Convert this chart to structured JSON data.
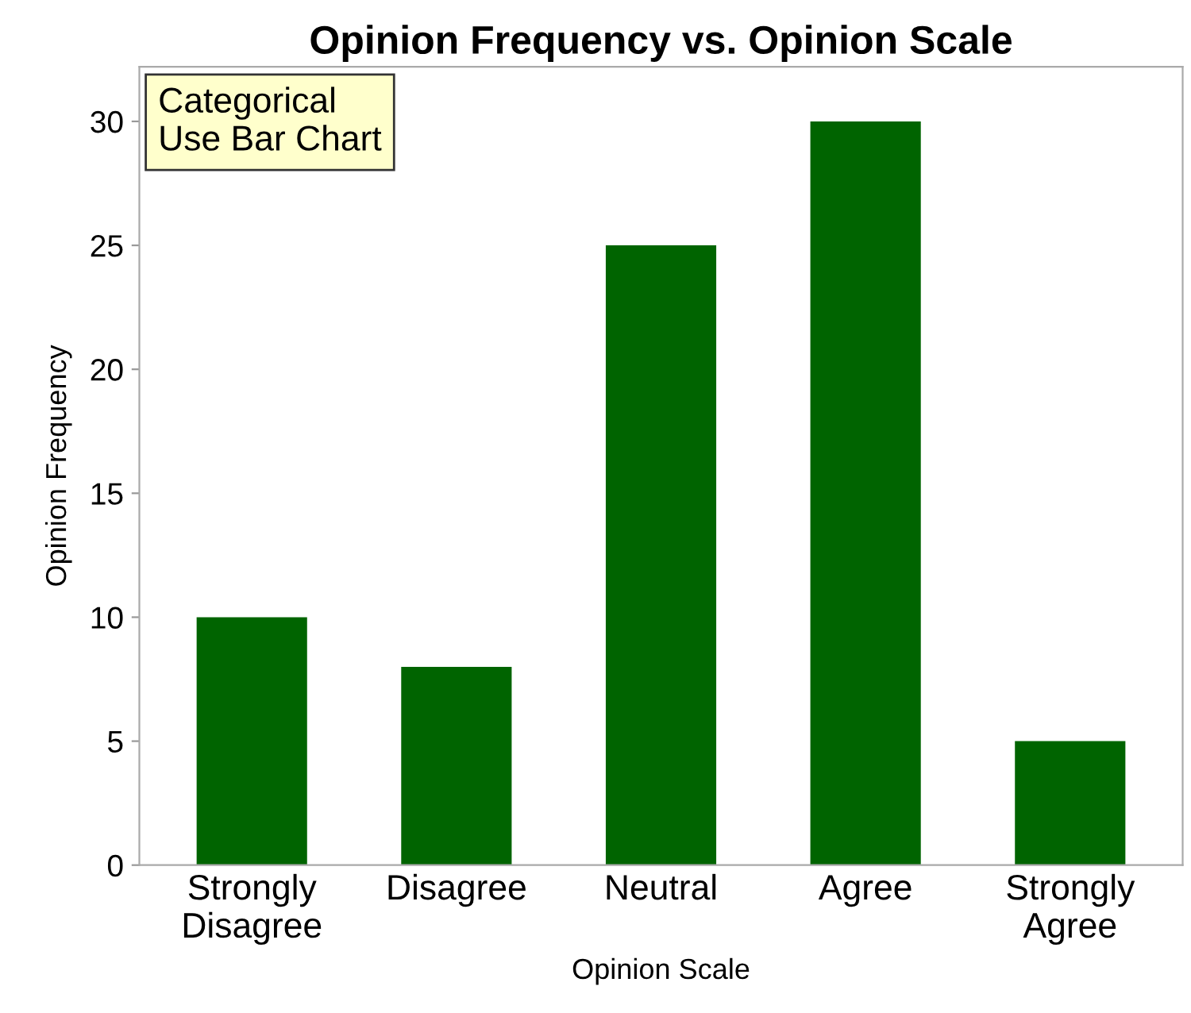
{
  "chart_data": {
    "type": "bar",
    "title": "Opinion Frequency vs. Opinion Scale",
    "xlabel": "Opinion Scale",
    "ylabel": "Opinion Frequency",
    "categories": [
      "Strongly\nDisagree",
      "Disagree",
      "Neutral",
      "Agree",
      "Strongly\nAgree"
    ],
    "values": [
      10,
      8,
      25,
      30,
      5
    ],
    "color": "#006400",
    "ylim": [
      0,
      32.2
    ],
    "yticks": [
      0,
      5,
      10,
      15,
      20,
      25,
      30
    ],
    "grid": false,
    "legend": false,
    "annotations": [
      "Categorical\nUse Bar Chart"
    ]
  }
}
